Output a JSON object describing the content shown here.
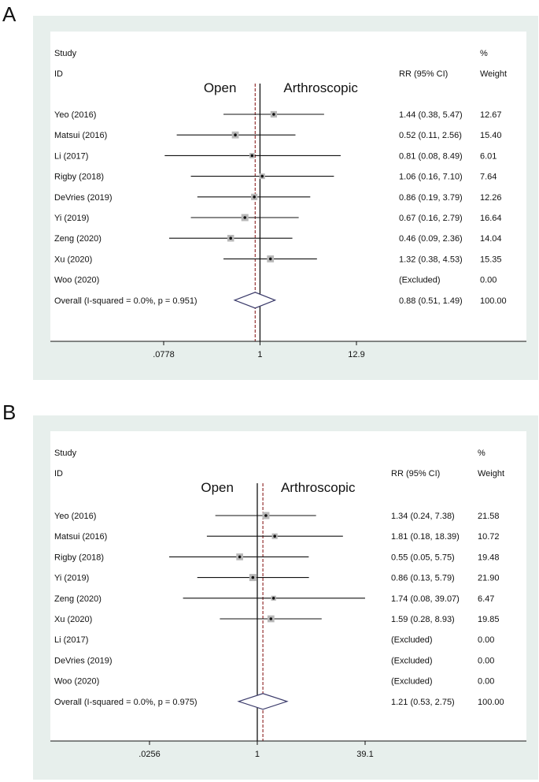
{
  "colors": {
    "outer_bg": "#e7efec",
    "plot_bg": "#ffffff",
    "ref_line": "#8b1f1f",
    "diamond": "#3a3a6a",
    "box": "#b8b8b8"
  },
  "chart_data": [
    {
      "type": "forest",
      "panel_label": "A",
      "header": {
        "study": "Study",
        "id": "ID",
        "rr": "RR (95% CI)",
        "pct": "%",
        "weight": "Weight"
      },
      "favours_left": "Open",
      "favours_right": "Arthroscopic",
      "axis": {
        "min": 0.0778,
        "max": 12.9,
        "scale": "log",
        "ticks": [
          ".0778",
          "1",
          "12.9"
        ],
        "tick_values": [
          0.0778,
          1,
          12.9
        ]
      },
      "overall_rr": 0.88,
      "studies": [
        {
          "label": "Yeo (2016)",
          "rr": 1.44,
          "lo": 0.38,
          "hi": 5.47,
          "ci_text": "1.44 (0.38, 5.47)",
          "weight_text": "12.67",
          "weight": 12.67
        },
        {
          "label": "Matsui (2016)",
          "rr": 0.52,
          "lo": 0.11,
          "hi": 2.56,
          "ci_text": "0.52 (0.11, 2.56)",
          "weight_text": "15.40",
          "weight": 15.4
        },
        {
          "label": "Li (2017)",
          "rr": 0.81,
          "lo": 0.08,
          "hi": 8.49,
          "ci_text": "0.81 (0.08, 8.49)",
          "weight_text": "6.01",
          "weight": 6.01
        },
        {
          "label": "Rigby (2018)",
          "rr": 1.06,
          "lo": 0.16,
          "hi": 7.1,
          "ci_text": "1.06 (0.16, 7.10)",
          "weight_text": "7.64",
          "weight": 7.64
        },
        {
          "label": "DeVries (2019)",
          "rr": 0.86,
          "lo": 0.19,
          "hi": 3.79,
          "ci_text": "0.86 (0.19, 3.79)",
          "weight_text": "12.26",
          "weight": 12.26
        },
        {
          "label": "Yi (2019)",
          "rr": 0.67,
          "lo": 0.16,
          "hi": 2.79,
          "ci_text": "0.67 (0.16, 2.79)",
          "weight_text": "16.64",
          "weight": 16.64
        },
        {
          "label": "Zeng (2020)",
          "rr": 0.46,
          "lo": 0.09,
          "hi": 2.36,
          "ci_text": "0.46 (0.09, 2.36)",
          "weight_text": "14.04",
          "weight": 14.04
        },
        {
          "label": "Xu (2020)",
          "rr": 1.32,
          "lo": 0.38,
          "hi": 4.53,
          "ci_text": "1.32 (0.38, 4.53)",
          "weight_text": "15.35",
          "weight": 15.35
        },
        {
          "label": "Woo (2020)",
          "rr": null,
          "lo": null,
          "hi": null,
          "ci_text": "(Excluded)",
          "weight_text": "0.00",
          "weight": 0
        },
        {
          "label": "Overall  (I-squared = 0.0%, p = 0.951)",
          "rr": 0.88,
          "lo": 0.51,
          "hi": 1.49,
          "ci_text": "0.88 (0.51, 1.49)",
          "weight_text": "100.00",
          "overall": true
        }
      ]
    },
    {
      "type": "forest",
      "panel_label": "B",
      "header": {
        "study": "Study",
        "id": "ID",
        "rr": "RR (95% CI)",
        "pct": "%",
        "weight": "Weight"
      },
      "favours_left": "Open",
      "favours_right": "Arthroscopic",
      "axis": {
        "min": 0.0256,
        "max": 39.1,
        "scale": "log",
        "ticks": [
          ".0256",
          "1",
          "39.1"
        ],
        "tick_values": [
          0.0256,
          1,
          39.1
        ]
      },
      "overall_rr": 1.21,
      "studies": [
        {
          "label": "Yeo (2016)",
          "rr": 1.34,
          "lo": 0.24,
          "hi": 7.38,
          "ci_text": "1.34 (0.24, 7.38)",
          "weight_text": "21.58",
          "weight": 21.58
        },
        {
          "label": "Matsui (2016)",
          "rr": 1.81,
          "lo": 0.18,
          "hi": 18.39,
          "ci_text": "1.81 (0.18, 18.39)",
          "weight_text": "10.72",
          "weight": 10.72
        },
        {
          "label": "Rigby (2018)",
          "rr": 0.55,
          "lo": 0.05,
          "hi": 5.75,
          "ci_text": "0.55 (0.05, 5.75)",
          "weight_text": "19.48",
          "weight": 19.48
        },
        {
          "label": "Yi (2019)",
          "rr": 0.86,
          "lo": 0.13,
          "hi": 5.79,
          "ci_text": "0.86 (0.13, 5.79)",
          "weight_text": "21.90",
          "weight": 21.9
        },
        {
          "label": "Zeng (2020)",
          "rr": 1.74,
          "lo": 0.08,
          "hi": 39.07,
          "ci_text": "1.74 (0.08, 39.07)",
          "weight_text": "6.47",
          "weight": 6.47
        },
        {
          "label": "Xu (2020)",
          "rr": 1.59,
          "lo": 0.28,
          "hi": 8.93,
          "ci_text": "1.59 (0.28, 8.93)",
          "weight_text": "19.85",
          "weight": 19.85
        },
        {
          "label": "Li (2017)",
          "rr": null,
          "lo": null,
          "hi": null,
          "ci_text": "(Excluded)",
          "weight_text": "0.00",
          "weight": 0
        },
        {
          "label": "DeVries (2019)",
          "rr": null,
          "lo": null,
          "hi": null,
          "ci_text": "(Excluded)",
          "weight_text": "0.00",
          "weight": 0
        },
        {
          "label": "Woo (2020)",
          "rr": null,
          "lo": null,
          "hi": null,
          "ci_text": "(Excluded)",
          "weight_text": "0.00",
          "weight": 0
        },
        {
          "label": "Overall  (I-squared = 0.0%, p = 0.975)",
          "rr": 1.21,
          "lo": 0.53,
          "hi": 2.75,
          "ci_text": "1.21 (0.53, 2.75)",
          "weight_text": "100.00",
          "overall": true
        }
      ]
    }
  ]
}
